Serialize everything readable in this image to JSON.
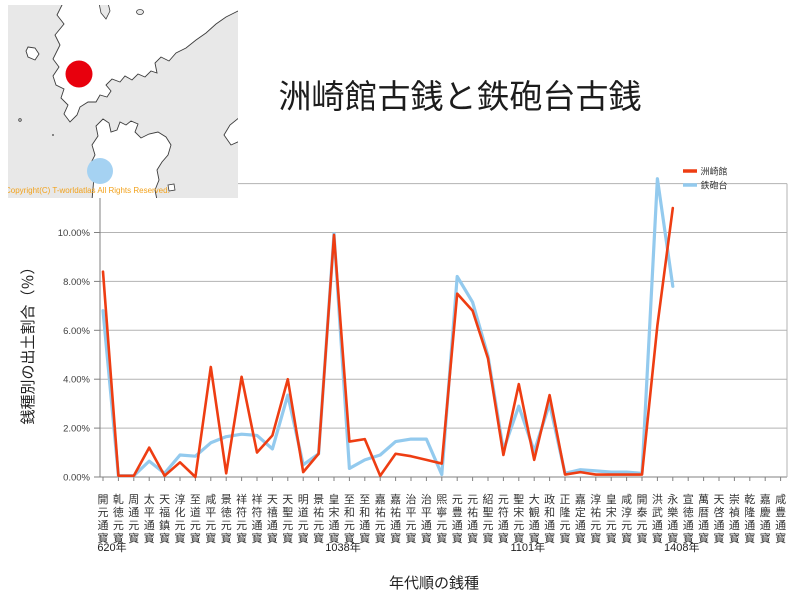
{
  "title": "洲崎館古銭と鉄砲台古銭",
  "map": {
    "copyright": "Copyright(C) T-worldatlas All Rights Reserved.",
    "sea_color": "#e8e8e8",
    "land_color": "#ffffff",
    "upper_marker_color": "#e8000d",
    "lower_marker_color": "#a5d2f2"
  },
  "chart_data": {
    "type": "line",
    "title": "洲崎館古銭と鉄砲台古銭",
    "xlabel": "年代順の銭種",
    "ylabel": "銭種別の出土割合（％）",
    "ylim": [
      0,
      12
    ],
    "grid": true,
    "legend_position": "top-right",
    "y_tick_values": [
      0,
      2,
      4,
      6,
      8,
      10
    ],
    "y_tick_labels": [
      "0.00%",
      "2.00%",
      "4.00%",
      "6.00%",
      "8.00%",
      "10.00%"
    ],
    "categories": [
      "開元通寳",
      "乹徳元寳",
      "周通元寳",
      "太平通寳",
      "天福鎮寳",
      "淳化元寳",
      "至道元寳",
      "咸平元寳",
      "景徳元寳",
      "祥符元寳",
      "祥符通寳",
      "天禧通寳",
      "天聖元寳",
      "明道元寳",
      "景祐元寳",
      "皇宋通寳",
      "至和元寳",
      "至和通寳",
      "嘉祐元寳",
      "嘉祐通寳",
      "治平元寳",
      "治平通寳",
      "煕寧元寳",
      "元豊通寳",
      "元祐通寳",
      "紹聖元寳",
      "元符通寳",
      "聖宋元寳",
      "大観通寳",
      "政和通寳",
      "正隆元寳",
      "嘉定通寳",
      "淳祐元寳",
      "皇宋元寳",
      "咸淳元寳",
      "開泰元寳",
      "洪武通寳",
      "永樂通寳",
      "宣徳通寳",
      "萬暦通寳",
      "天啓通寳",
      "崇禎通寳",
      "乾隆通寳",
      "嘉慶通寳",
      "咸豊通寳"
    ],
    "year_annotations": [
      {
        "label": "620年",
        "index": 0
      },
      {
        "label": "1038年",
        "index": 15
      },
      {
        "label": "1101年",
        "index": 27
      },
      {
        "label": "1408年",
        "index": 37
      }
    ],
    "series": [
      {
        "name": "洲崎館",
        "color": "#ee3d12",
        "width": 2.6,
        "values": [
          8.4,
          0.05,
          0.05,
          1.2,
          0.05,
          0.6,
          0.0,
          4.5,
          0.15,
          4.1,
          1.0,
          1.7,
          4.0,
          0.2,
          0.95,
          9.9,
          1.45,
          1.55,
          0.05,
          0.95,
          0.85,
          0.7,
          0.55,
          7.5,
          6.8,
          4.85,
          0.9,
          3.8,
          0.7,
          3.35,
          0.1,
          0.2,
          0.1,
          0.1,
          0.1,
          0.1,
          6.2,
          11.0,
          null,
          null,
          null,
          null,
          null,
          null,
          null
        ]
      },
      {
        "name": "鉄砲台",
        "color": "#93caee",
        "width": 3.2,
        "values": [
          6.8,
          0.05,
          0.05,
          0.65,
          0.15,
          0.9,
          0.85,
          1.4,
          1.65,
          1.75,
          1.7,
          1.15,
          3.35,
          0.5,
          0.95,
          9.95,
          0.35,
          0.7,
          0.9,
          1.45,
          1.55,
          1.55,
          0.1,
          8.2,
          7.15,
          4.95,
          1.1,
          2.9,
          1.05,
          3.0,
          0.15,
          0.3,
          0.25,
          0.2,
          0.2,
          0.15,
          12.2,
          7.8,
          null,
          null,
          null,
          null,
          null,
          null,
          null
        ]
      }
    ]
  }
}
